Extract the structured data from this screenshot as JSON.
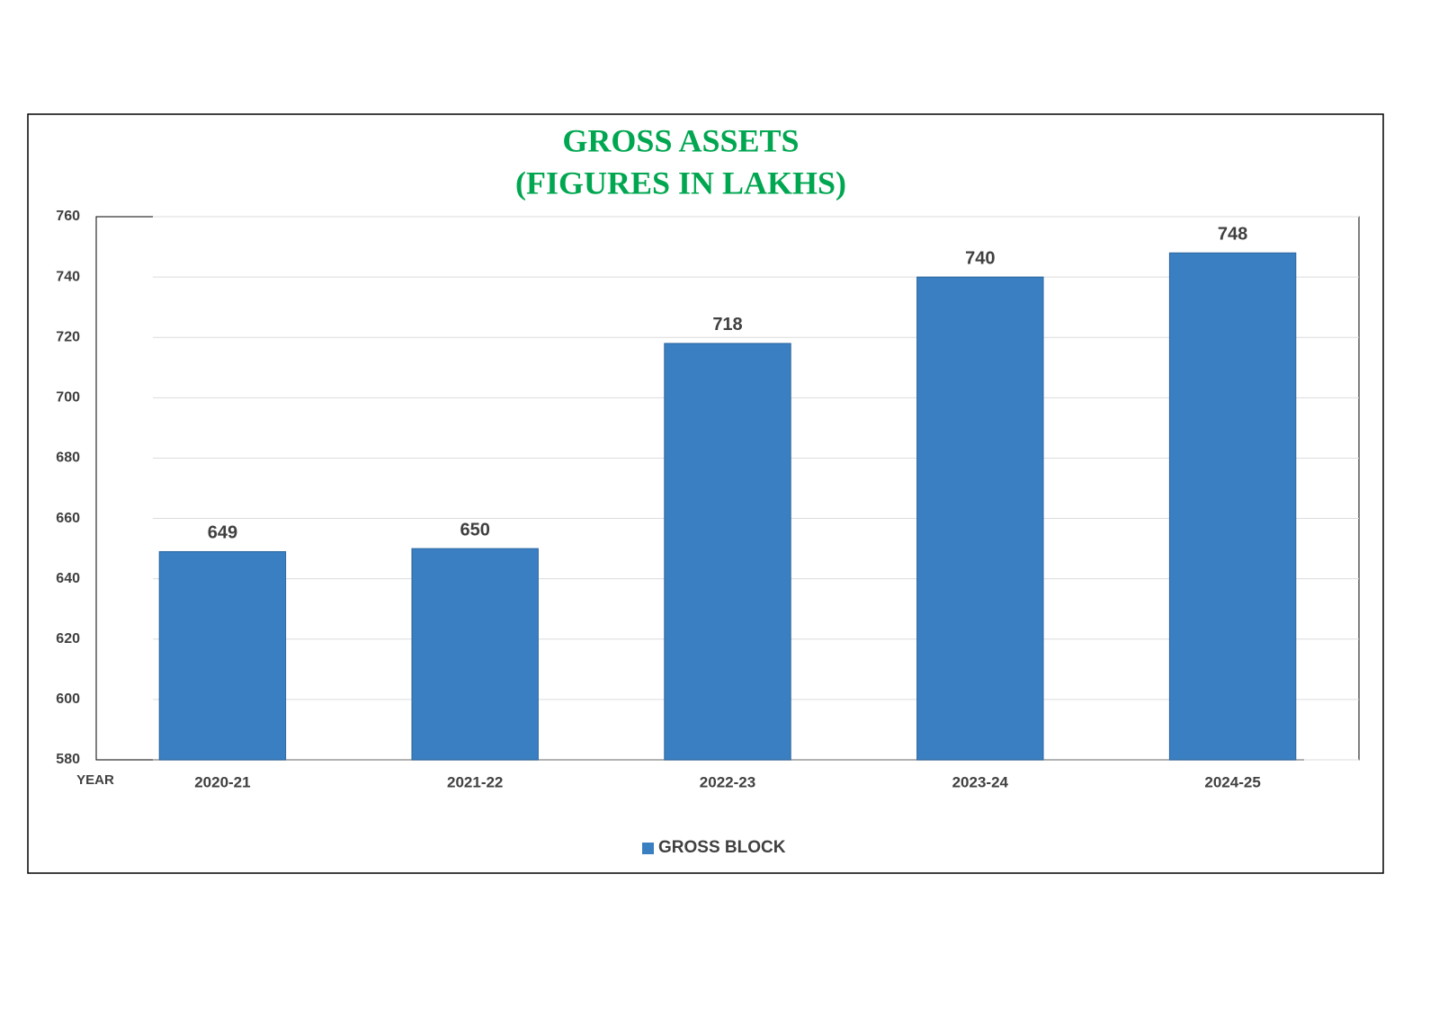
{
  "chart_data": {
    "type": "bar",
    "title": "GROSS ASSETS",
    "subtitle": "(FIGURES IN LAKHS)",
    "x_label": "YEAR",
    "categories": [
      "2020-21",
      "2021-22",
      "2022-23",
      "2023-24",
      "2024-25"
    ],
    "series": [
      {
        "name": "GROSS BLOCK",
        "color": "#3a7fc2",
        "values": [
          649,
          650,
          718,
          740,
          748
        ]
      }
    ],
    "ylim": [
      580,
      760
    ],
    "yticks": [
      580,
      600,
      620,
      640,
      660,
      680,
      700,
      720,
      740,
      760
    ],
    "grid": true,
    "legend": "bottom"
  }
}
